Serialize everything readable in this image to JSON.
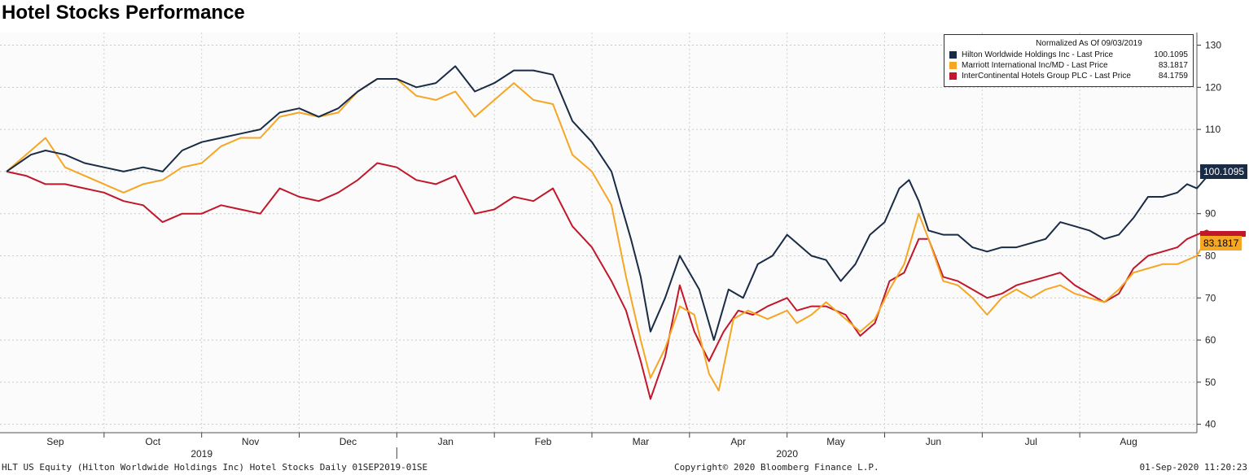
{
  "title": "Hotel Stocks Performance",
  "legend": {
    "header": "Normalized As Of 09/03/2019",
    "items": [
      {
        "name": "Hilton Worldwide Holdings Inc - Last Price",
        "value": "100.1095",
        "color": "#1a2b45"
      },
      {
        "name": "Marriott International Inc/MD - Last Price",
        "value": "83.1817",
        "color": "#f5a623"
      },
      {
        "name": "InterContinental Hotels Group PLC - Last Price",
        "value": "84.1759",
        "color": "#c0182a"
      }
    ]
  },
  "tags": {
    "hilton": "100.1095",
    "marriott": "83.1817"
  },
  "footer": {
    "left": "HLT US Equity (Hilton Worldwide Holdings Inc) Hotel Stocks  Daily 01SEP2019-01SE",
    "center": "Copyright© 2020 Bloomberg Finance L.P.",
    "right": "01-Sep-2020 11:20:23"
  },
  "chart_data": {
    "type": "line",
    "ylim": [
      38,
      133
    ],
    "y_ticks": [
      40,
      50,
      60,
      70,
      80,
      90,
      100,
      110,
      120,
      130
    ],
    "x_range": [
      0,
      12
    ],
    "months": [
      {
        "label": "Sep",
        "x": 0.5
      },
      {
        "label": "Oct",
        "x": 1.5
      },
      {
        "label": "Nov",
        "x": 2.5
      },
      {
        "label": "Dec",
        "x": 3.5
      },
      {
        "label": "Jan",
        "x": 4.5
      },
      {
        "label": "Feb",
        "x": 5.5
      },
      {
        "label": "Mar",
        "x": 6.5
      },
      {
        "label": "Apr",
        "x": 7.5
      },
      {
        "label": "May",
        "x": 8.5
      },
      {
        "label": "Jun",
        "x": 9.5
      },
      {
        "label": "Jul",
        "x": 10.5
      },
      {
        "label": "Aug",
        "x": 11.5
      }
    ],
    "years": [
      {
        "label": "2019",
        "x": 2.0
      },
      {
        "label": "2020",
        "x": 8.0
      }
    ],
    "year_divider_x": 4.0,
    "grid": true,
    "legend_position": "top-right",
    "series": [
      {
        "name": "Hilton Worldwide Holdings Inc - Last Price",
        "color": "#1a2b45",
        "points": [
          [
            0,
            100
          ],
          [
            0.25,
            104
          ],
          [
            0.4,
            105
          ],
          [
            0.6,
            104
          ],
          [
            0.8,
            102
          ],
          [
            1.0,
            101
          ],
          [
            1.2,
            100
          ],
          [
            1.4,
            101
          ],
          [
            1.6,
            100
          ],
          [
            1.8,
            105
          ],
          [
            2.0,
            107
          ],
          [
            2.2,
            108
          ],
          [
            2.4,
            109
          ],
          [
            2.6,
            110
          ],
          [
            2.8,
            114
          ],
          [
            3.0,
            115
          ],
          [
            3.2,
            113
          ],
          [
            3.4,
            115
          ],
          [
            3.6,
            119
          ],
          [
            3.8,
            122
          ],
          [
            4.0,
            122
          ],
          [
            4.2,
            120
          ],
          [
            4.4,
            121
          ],
          [
            4.6,
            125
          ],
          [
            4.8,
            119
          ],
          [
            5.0,
            121
          ],
          [
            5.2,
            124
          ],
          [
            5.4,
            124
          ],
          [
            5.6,
            123
          ],
          [
            5.8,
            112
          ],
          [
            6.0,
            107
          ],
          [
            6.2,
            100
          ],
          [
            6.4,
            84
          ],
          [
            6.5,
            75
          ],
          [
            6.6,
            62
          ],
          [
            6.75,
            70
          ],
          [
            6.9,
            80
          ],
          [
            7.1,
            72
          ],
          [
            7.25,
            60
          ],
          [
            7.4,
            72
          ],
          [
            7.55,
            70
          ],
          [
            7.7,
            78
          ],
          [
            7.85,
            80
          ],
          [
            8.0,
            85
          ],
          [
            8.1,
            83
          ],
          [
            8.25,
            80
          ],
          [
            8.4,
            79
          ],
          [
            8.55,
            74
          ],
          [
            8.7,
            78
          ],
          [
            8.85,
            85
          ],
          [
            9.0,
            88
          ],
          [
            9.15,
            96
          ],
          [
            9.25,
            98
          ],
          [
            9.35,
            93
          ],
          [
            9.45,
            86
          ],
          [
            9.6,
            85
          ],
          [
            9.75,
            85
          ],
          [
            9.9,
            82
          ],
          [
            10.05,
            81
          ],
          [
            10.2,
            82
          ],
          [
            10.35,
            82
          ],
          [
            10.5,
            83
          ],
          [
            10.65,
            84
          ],
          [
            10.8,
            88
          ],
          [
            10.95,
            87
          ],
          [
            11.1,
            86
          ],
          [
            11.25,
            84
          ],
          [
            11.4,
            85
          ],
          [
            11.55,
            89
          ],
          [
            11.7,
            94
          ],
          [
            11.85,
            94
          ],
          [
            12.0,
            95
          ],
          [
            12.1,
            97
          ],
          [
            12.2,
            96
          ],
          [
            12.35,
            100
          ],
          [
            12.45,
            100
          ]
        ]
      },
      {
        "name": "Marriott International Inc/MD - Last Price",
        "color": "#f5a623",
        "points": [
          [
            0,
            100
          ],
          [
            0.2,
            104
          ],
          [
            0.4,
            108
          ],
          [
            0.6,
            101
          ],
          [
            0.8,
            99
          ],
          [
            1.0,
            97
          ],
          [
            1.2,
            95
          ],
          [
            1.4,
            97
          ],
          [
            1.6,
            98
          ],
          [
            1.8,
            101
          ],
          [
            2.0,
            102
          ],
          [
            2.2,
            106
          ],
          [
            2.4,
            108
          ],
          [
            2.6,
            108
          ],
          [
            2.8,
            113
          ],
          [
            3.0,
            114
          ],
          [
            3.2,
            113
          ],
          [
            3.4,
            114
          ],
          [
            3.6,
            119
          ],
          [
            3.8,
            122
          ],
          [
            4.0,
            122
          ],
          [
            4.2,
            118
          ],
          [
            4.4,
            117
          ],
          [
            4.6,
            119
          ],
          [
            4.8,
            113
          ],
          [
            5.0,
            117
          ],
          [
            5.2,
            121
          ],
          [
            5.4,
            117
          ],
          [
            5.6,
            116
          ],
          [
            5.8,
            104
          ],
          [
            6.0,
            100
          ],
          [
            6.2,
            92
          ],
          [
            6.35,
            75
          ],
          [
            6.5,
            60
          ],
          [
            6.6,
            51
          ],
          [
            6.75,
            58
          ],
          [
            6.9,
            68
          ],
          [
            7.05,
            66
          ],
          [
            7.2,
            52
          ],
          [
            7.3,
            48
          ],
          [
            7.45,
            65
          ],
          [
            7.6,
            67
          ],
          [
            7.8,
            65
          ],
          [
            8.0,
            67
          ],
          [
            8.1,
            64
          ],
          [
            8.25,
            66
          ],
          [
            8.4,
            69
          ],
          [
            8.6,
            65
          ],
          [
            8.75,
            62
          ],
          [
            8.9,
            65
          ],
          [
            9.05,
            72
          ],
          [
            9.2,
            78
          ],
          [
            9.35,
            90
          ],
          [
            9.45,
            84
          ],
          [
            9.6,
            74
          ],
          [
            9.75,
            73
          ],
          [
            9.9,
            70
          ],
          [
            10.05,
            66
          ],
          [
            10.2,
            70
          ],
          [
            10.35,
            72
          ],
          [
            10.5,
            70
          ],
          [
            10.65,
            72
          ],
          [
            10.8,
            73
          ],
          [
            10.95,
            71
          ],
          [
            11.1,
            70
          ],
          [
            11.25,
            69
          ],
          [
            11.4,
            72
          ],
          [
            11.55,
            76
          ],
          [
            11.7,
            77
          ],
          [
            11.85,
            78
          ],
          [
            12.0,
            78
          ],
          [
            12.1,
            79
          ],
          [
            12.2,
            80
          ],
          [
            12.3,
            84
          ],
          [
            12.4,
            83
          ],
          [
            12.45,
            83
          ]
        ]
      },
      {
        "name": "InterContinental Hotels Group PLC - Last Price",
        "color": "#c0182a",
        "points": [
          [
            0,
            100
          ],
          [
            0.2,
            99
          ],
          [
            0.4,
            97
          ],
          [
            0.6,
            97
          ],
          [
            0.8,
            96
          ],
          [
            1.0,
            95
          ],
          [
            1.2,
            93
          ],
          [
            1.4,
            92
          ],
          [
            1.6,
            88
          ],
          [
            1.8,
            90
          ],
          [
            2.0,
            90
          ],
          [
            2.2,
            92
          ],
          [
            2.4,
            91
          ],
          [
            2.6,
            90
          ],
          [
            2.8,
            96
          ],
          [
            3.0,
            94
          ],
          [
            3.2,
            93
          ],
          [
            3.4,
            95
          ],
          [
            3.6,
            98
          ],
          [
            3.8,
            102
          ],
          [
            4.0,
            101
          ],
          [
            4.2,
            98
          ],
          [
            4.4,
            97
          ],
          [
            4.6,
            99
          ],
          [
            4.8,
            90
          ],
          [
            5.0,
            91
          ],
          [
            5.2,
            94
          ],
          [
            5.4,
            93
          ],
          [
            5.6,
            96
          ],
          [
            5.8,
            87
          ],
          [
            6.0,
            82
          ],
          [
            6.2,
            74
          ],
          [
            6.35,
            67
          ],
          [
            6.5,
            55
          ],
          [
            6.6,
            46
          ],
          [
            6.75,
            56
          ],
          [
            6.9,
            73
          ],
          [
            7.05,
            62
          ],
          [
            7.2,
            55
          ],
          [
            7.35,
            62
          ],
          [
            7.5,
            67
          ],
          [
            7.65,
            66
          ],
          [
            7.8,
            68
          ],
          [
            8.0,
            70
          ],
          [
            8.1,
            67
          ],
          [
            8.25,
            68
          ],
          [
            8.4,
            68
          ],
          [
            8.6,
            66
          ],
          [
            8.75,
            61
          ],
          [
            8.9,
            64
          ],
          [
            9.05,
            74
          ],
          [
            9.2,
            76
          ],
          [
            9.35,
            84
          ],
          [
            9.45,
            84
          ],
          [
            9.6,
            75
          ],
          [
            9.75,
            74
          ],
          [
            9.9,
            72
          ],
          [
            10.05,
            70
          ],
          [
            10.2,
            71
          ],
          [
            10.35,
            73
          ],
          [
            10.5,
            74
          ],
          [
            10.65,
            75
          ],
          [
            10.8,
            76
          ],
          [
            10.95,
            73
          ],
          [
            11.1,
            71
          ],
          [
            11.25,
            69
          ],
          [
            11.4,
            71
          ],
          [
            11.55,
            77
          ],
          [
            11.7,
            80
          ],
          [
            11.85,
            81
          ],
          [
            12.0,
            82
          ],
          [
            12.1,
            84
          ],
          [
            12.2,
            85
          ],
          [
            12.3,
            86
          ],
          [
            12.45,
            84
          ]
        ]
      }
    ]
  }
}
